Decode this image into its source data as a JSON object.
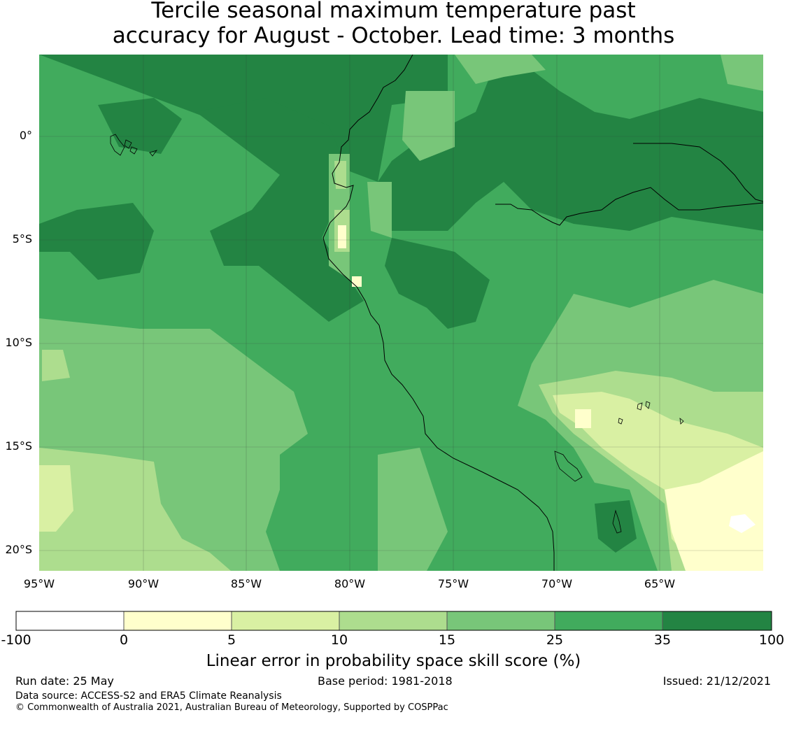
{
  "title": {
    "line1": "Tercile seasonal maximum temperature past",
    "line2": "accuracy for August - October. Lead time: 3 months"
  },
  "map": {
    "lon_labels": [
      "95°W",
      "90°W",
      "85°W",
      "80°W",
      "75°W",
      "70°W",
      "65°W"
    ],
    "lat_labels": [
      "0°",
      "5°S",
      "10°S",
      "15°S",
      "20°S"
    ]
  },
  "colorbar": {
    "ticks": [
      "-100",
      "0",
      "5",
      "10",
      "15",
      "25",
      "35",
      "100"
    ],
    "colors": [
      "#ffffff",
      "#ffffcc",
      "#d9f0a3",
      "#addd8e",
      "#78c679",
      "#41ab5d",
      "#238443"
    ],
    "label": "Linear error in probability space skill score (%)"
  },
  "footer": {
    "run_date": "Run date: 25 May",
    "base_period": "Base period: 1981-2018",
    "issued": "Issued: 21/12/2021",
    "data_source": "Data source: ACCESS-S2 and ERA5 Climate Reanalysis",
    "copyright": "© Commonwealth of Australia 2021, Australian Bureau of Meteorology, Supported by COSPPac"
  }
}
